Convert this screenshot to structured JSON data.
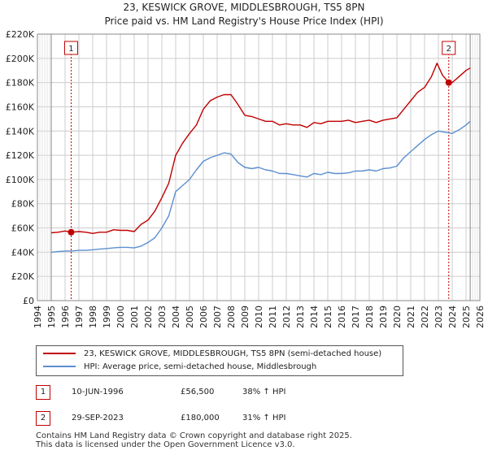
{
  "chart_data": {
    "type": "line",
    "title": "23, KESWICK GROVE, MIDDLESBROUGH, TS5 8PN",
    "subtitle": "Price paid vs. HM Land Registry's House Price Index (HPI)",
    "xlabel": "",
    "ylabel": "",
    "xlim": [
      1994,
      2026
    ],
    "ylim": [
      0,
      220000
    ],
    "x_ticks": [
      "1994",
      "1995",
      "1996",
      "1997",
      "1998",
      "1999",
      "2000",
      "2001",
      "2002",
      "2003",
      "2004",
      "2005",
      "2006",
      "2007",
      "2008",
      "2009",
      "2010",
      "2011",
      "2012",
      "2013",
      "2014",
      "2015",
      "2016",
      "2017",
      "2018",
      "2019",
      "2020",
      "2021",
      "2022",
      "2023",
      "2024",
      "2025",
      "2026"
    ],
    "y_ticks": [
      {
        "value": 0,
        "label": "£0"
      },
      {
        "value": 20000,
        "label": "£20K"
      },
      {
        "value": 40000,
        "label": "£40K"
      },
      {
        "value": 60000,
        "label": "£60K"
      },
      {
        "value": 80000,
        "label": "£80K"
      },
      {
        "value": 100000,
        "label": "£100K"
      },
      {
        "value": 120000,
        "label": "£120K"
      },
      {
        "value": 140000,
        "label": "£140K"
      },
      {
        "value": 160000,
        "label": "£160K"
      },
      {
        "value": 180000,
        "label": "£180K"
      },
      {
        "value": 200000,
        "label": "£200K"
      },
      {
        "value": 220000,
        "label": "£220K"
      }
    ],
    "grid": true,
    "colors": {
      "property": "#c00000",
      "hpi": "#5b8fd0",
      "annotation": "#c00000"
    },
    "series": [
      {
        "name": "23, KESWICK GROVE, MIDDLESBROUGH, TS5 8PN (semi-detached house)",
        "color": "#c00000",
        "x": [
          1995.0,
          1995.5,
          1996.0,
          1996.44,
          1997.0,
          1997.5,
          1998.0,
          1998.5,
          1999.0,
          1999.5,
          2000.0,
          2000.5,
          2001.0,
          2001.5,
          2002.0,
          2002.5,
          2003.0,
          2003.5,
          2004.0,
          2004.5,
          2005.0,
          2005.5,
          2006.0,
          2006.5,
          2007.0,
          2007.5,
          2008.0,
          2008.5,
          2009.0,
          2009.5,
          2010.0,
          2010.5,
          2011.0,
          2011.5,
          2012.0,
          2012.5,
          2013.0,
          2013.5,
          2014.0,
          2014.5,
          2015.0,
          2015.5,
          2016.0,
          2016.5,
          2017.0,
          2017.5,
          2018.0,
          2018.5,
          2019.0,
          2019.5,
          2020.0,
          2020.5,
          2021.0,
          2021.5,
          2022.0,
          2022.5,
          2022.9,
          2023.3,
          2023.75,
          2024.0,
          2024.5,
          2025.0,
          2025.3
        ],
        "values": [
          56000,
          56500,
          57500,
          56500,
          57000,
          56500,
          55500,
          56500,
          56500,
          58500,
          58000,
          58000,
          57000,
          63000,
          66500,
          74000,
          85000,
          97000,
          120000,
          130000,
          138000,
          145000,
          158000,
          165000,
          168000,
          170000,
          170000,
          162000,
          153000,
          152000,
          150000,
          148000,
          148000,
          145000,
          146000,
          145000,
          145000,
          143000,
          147000,
          146000,
          148000,
          148000,
          148000,
          149000,
          147000,
          148000,
          149000,
          147000,
          149000,
          150000,
          151000,
          158000,
          165000,
          172000,
          176000,
          185000,
          196000,
          186000,
          180000,
          180000,
          185000,
          190000,
          192000
        ]
      },
      {
        "name": "HPI: Average price, semi-detached house, Middlesbrough",
        "color": "#5b8fd0",
        "x": [
          1995.0,
          1995.5,
          1996.0,
          1996.5,
          1997.0,
          1997.5,
          1998.0,
          1998.5,
          1999.0,
          1999.5,
          2000.0,
          2000.5,
          2001.0,
          2001.5,
          2002.0,
          2002.5,
          2003.0,
          2003.5,
          2004.0,
          2004.5,
          2005.0,
          2005.5,
          2006.0,
          2006.5,
          2007.0,
          2007.5,
          2008.0,
          2008.5,
          2009.0,
          2009.5,
          2010.0,
          2010.5,
          2011.0,
          2011.5,
          2012.0,
          2012.5,
          2013.0,
          2013.5,
          2014.0,
          2014.5,
          2015.0,
          2015.5,
          2016.0,
          2016.5,
          2017.0,
          2017.5,
          2018.0,
          2018.5,
          2019.0,
          2019.5,
          2020.0,
          2020.5,
          2021.0,
          2021.5,
          2022.0,
          2022.5,
          2023.0,
          2023.5,
          2024.0,
          2024.5,
          2025.0,
          2025.3
        ],
        "values": [
          40000,
          40500,
          41000,
          41000,
          41500,
          41500,
          42000,
          42500,
          43000,
          43500,
          44000,
          44000,
          43500,
          45000,
          48000,
          52000,
          60000,
          70000,
          90000,
          95000,
          100000,
          108000,
          115000,
          118000,
          120000,
          122000,
          121000,
          114000,
          110000,
          109000,
          110000,
          108000,
          107000,
          105000,
          105000,
          104000,
          103000,
          102000,
          105000,
          104000,
          106000,
          105000,
          105000,
          105500,
          107000,
          107000,
          108000,
          107000,
          109000,
          109500,
          111000,
          118000,
          123000,
          128000,
          133000,
          137000,
          140000,
          139000,
          138000,
          141000,
          145000,
          148000
        ]
      }
    ],
    "annotations": [
      {
        "label": "1",
        "x": 1996.44,
        "value": 56500
      },
      {
        "label": "2",
        "x": 2023.75,
        "value": 180000
      }
    ],
    "legend": [
      "23, KESWICK GROVE, MIDDLESBROUGH, TS5 8PN (semi-detached house)",
      "HPI: Average price, semi-detached house, Middlesbrough"
    ]
  },
  "transactions": [
    {
      "badge": "1",
      "date": "10-JUN-1996",
      "price": "£56,500",
      "hpi": "38% ↑ HPI"
    },
    {
      "badge": "2",
      "date": "29-SEP-2023",
      "price": "£180,000",
      "hpi": "31% ↑ HPI"
    }
  ],
  "footer": {
    "line1": "Contains HM Land Registry data © Crown copyright and database right 2025.",
    "line2": "This data is licensed under the Open Government Licence v3.0."
  }
}
